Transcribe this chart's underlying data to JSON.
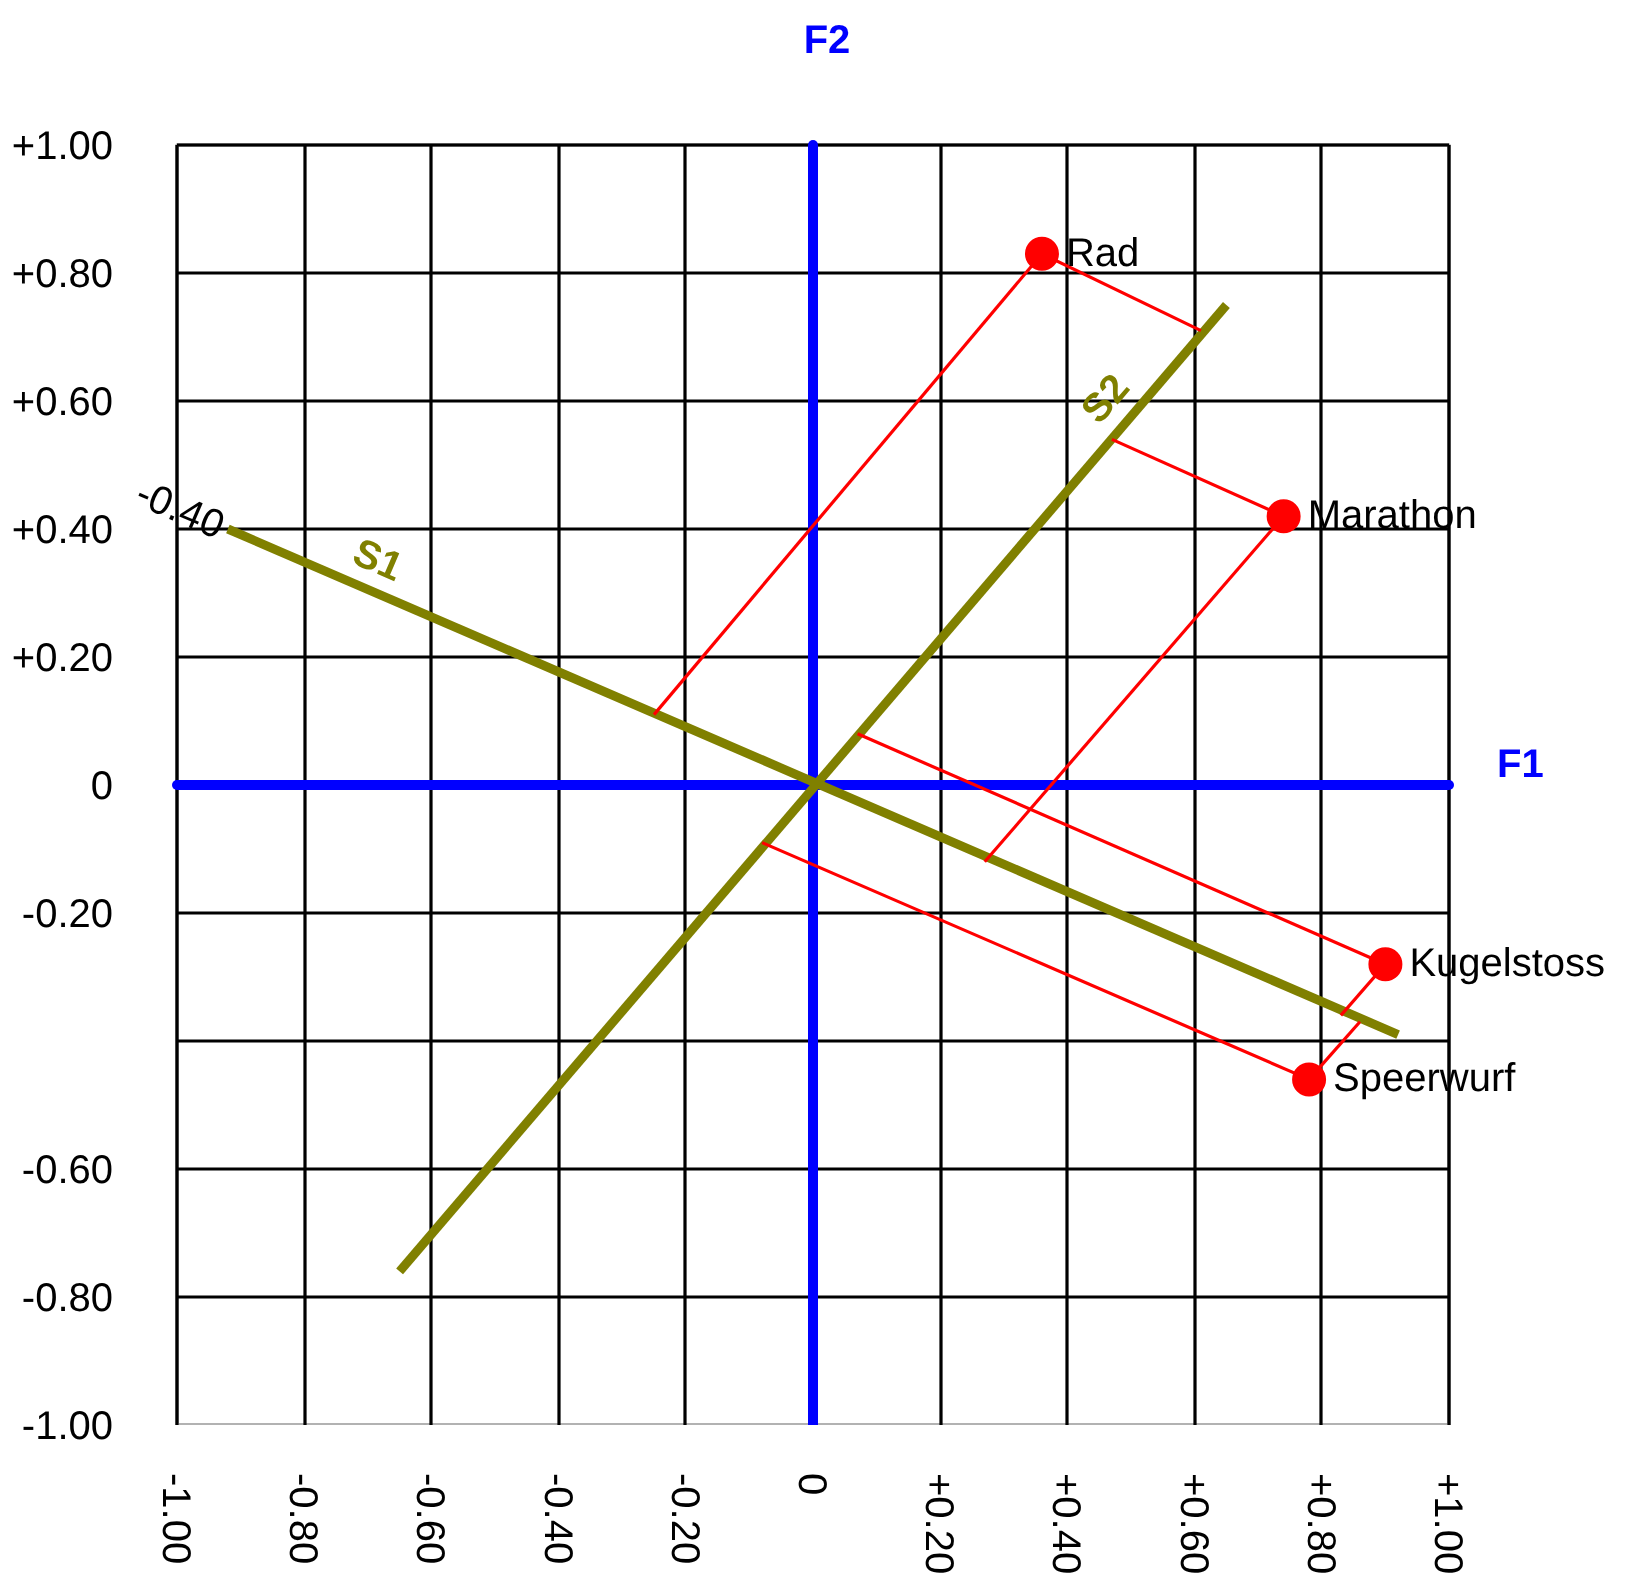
{
  "chart_data": {
    "type": "scatter",
    "xlabel": "F1",
    "ylabel": "F2",
    "xlim": [
      -1,
      1
    ],
    "ylim": [
      -1,
      1
    ],
    "xticks": [
      {
        "value": -1,
        "label": "-1.00"
      },
      {
        "value": -0.8,
        "label": "-0.80"
      },
      {
        "value": -0.6,
        "label": "-0.60"
      },
      {
        "value": -0.4,
        "label": "-0.40"
      },
      {
        "value": -0.2,
        "label": "-0.20"
      },
      0,
      {
        "value": 0.2,
        "label": "+0.20"
      },
      {
        "value": 0.4,
        "label": "+0.40"
      },
      {
        "value": 0.6,
        "label": "+0.60"
      },
      {
        "value": 0.8,
        "label": "+0.80"
      },
      {
        "value": 1,
        "label": "+1.00"
      }
    ],
    "yticks": [
      {
        "value": -1,
        "label": "-1.00"
      },
      {
        "value": -0.8,
        "label": "-0.80"
      },
      {
        "value": -0.6,
        "label": "-0.60"
      },
      {
        "value": -0.4,
        "label": null
      },
      {
        "value": -0.2,
        "label": "-0.20"
      },
      0,
      {
        "value": 0.2,
        "label": "+0.20"
      },
      {
        "value": 0.4,
        "label": "+0.40"
      },
      {
        "value": 0.6,
        "label": "+0.60"
      },
      {
        "value": 0.8,
        "label": "+0.80"
      },
      {
        "value": 1,
        "label": "+1.00"
      }
    ],
    "grid": true,
    "series": [
      {
        "name": "S1",
        "type": "line",
        "color": "#808000",
        "x": [
          -0.92,
          0.92
        ],
        "values": [
          0.4,
          -0.39
        ]
      },
      {
        "name": "S2",
        "type": "line",
        "color": "#808000",
        "x": [
          -0.65,
          0.65
        ],
        "values": [
          -0.76,
          0.75
        ]
      },
      {
        "type": "line",
        "color": "#ff0000",
        "x": [
          0.36,
          -0.25
        ],
        "values": [
          0.83,
          0.11
        ]
      },
      {
        "type": "line",
        "color": "#ff0000",
        "x": [
          0.36,
          0.61
        ],
        "values": [
          0.83,
          0.71
        ]
      },
      {
        "type": "line",
        "color": "#ff0000",
        "x": [
          0.74,
          0.47
        ],
        "values": [
          0.42,
          0.54
        ]
      },
      {
        "type": "line",
        "color": "#ff0000",
        "x": [
          0.74,
          0.27
        ],
        "values": [
          0.42,
          -0.12
        ]
      },
      {
        "type": "line",
        "color": "#ff0000",
        "x": [
          0.9,
          0.07
        ],
        "values": [
          -0.28,
          0.08
        ]
      },
      {
        "type": "line",
        "color": "#ff0000",
        "x": [
          0.9,
          0.83
        ],
        "values": [
          -0.28,
          -0.36
        ]
      },
      {
        "type": "line",
        "color": "#ff0000",
        "x": [
          0.78,
          -0.08
        ],
        "values": [
          -0.46,
          -0.09
        ]
      },
      {
        "type": "line",
        "color": "#ff0000",
        "x": [
          0.78,
          0.86
        ],
        "values": [
          -0.46,
          -0.37
        ]
      },
      {
        "color": "#ff0000",
        "marker": "circle",
        "x": [
          0.36,
          0.74,
          0.9,
          0.78
        ],
        "values": [
          0.83,
          0.42,
          -0.28,
          -0.46
        ]
      }
    ],
    "annotations": [
      {
        "text": "Rad",
        "x": 0.36,
        "y": 0.83
      },
      {
        "text": "Marathon",
        "x": 0.74,
        "y": 0.42
      },
      {
        "text": "Kugelstoss",
        "x": 0.9,
        "y": -0.28
      },
      {
        "text": "Speerwurf",
        "x": 0.78,
        "y": -0.46
      },
      {
        "text": "-0.40",
        "x": -0.92,
        "y": 0.4
      }
    ]
  }
}
